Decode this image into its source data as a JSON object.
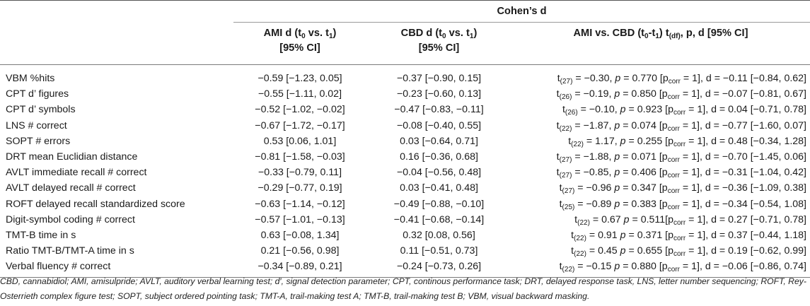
{
  "header": {
    "group_label": "Cohen’s d",
    "col_ami": {
      "prefix": "AMI d (t",
      "s0": "0",
      "mid": " vs. t",
      "s1": "1",
      "suffix": ")",
      "line2": "[95% CI]"
    },
    "col_cbd": {
      "prefix": "CBD d (t",
      "s0": "0",
      "mid": " vs. t",
      "s1": "1",
      "suffix": ")",
      "line2": "[95% CI]"
    },
    "col_cmp": {
      "prefix": "AMI vs. CBD (t",
      "s0": "0",
      "mid": "-t",
      "s1": "1",
      "close": ") t",
      "sdf": "(df)",
      "suffix": ", p, d [95% CI]"
    }
  },
  "rows": [
    {
      "label": "VBM %hits",
      "ami": "−0.59 [−1.23, 0.05]",
      "cbd": "−0.37 [−0.90, 0.15]",
      "cmp": {
        "df": "(27)",
        "t": " = −0.30, ",
        "p": " = 0.770 [p",
        "rest": " = 1], d = −0.11 [−0.84, 0.62]"
      }
    },
    {
      "label": "CPT d’ figures",
      "ami": "−0.55 [−1.11, 0.02]",
      "cbd": "−0.23 [−0.60, 0.13]",
      "cmp": {
        "df": "(26)",
        "t": " = −0.19, ",
        "p": " = 0.850 [p",
        "rest": " = 1], d = −0.07 [−0.81, 0.67]"
      }
    },
    {
      "label": "CPT d’ symbols",
      "ami": "−0.52 [−1.02, −0.02]",
      "cbd": "−0.47 [−0.83, −0.11]",
      "cmp": {
        "df": "(26)",
        "t": " = −0.10, ",
        "p": " = 0.923 [p",
        "rest": " = 1], d = 0.04 [−0.71, 0.78]"
      }
    },
    {
      "label": "LNS # correct",
      "ami": "−0.67 [−1.72, −0.17]",
      "cbd": "−0.08 [−0.40, 0.55]",
      "cmp": {
        "df": "(22)",
        "t": " = −1.87, ",
        "p": " = 0.074 [p",
        "rest": " = 1], d = −0.77 [−1.60, 0.07]"
      }
    },
    {
      "label": "SOPT # errors",
      "ami": "0.53 [0.06, 1.01]",
      "cbd": "0.03 [−0.64, 0.71]",
      "cmp": {
        "df": "(22)",
        "t": " = 1.17, ",
        "p": " = 0.255 [p",
        "rest": " = 1], d = 0.48 [−0.34, 1.28]"
      }
    },
    {
      "label": "DRT mean Euclidian distance",
      "ami": "−0.81 [−1.58, −0.03]",
      "cbd": "0.16 [−0.36, 0.68]",
      "cmp": {
        "df": "(27)",
        "t": " = −1.88, ",
        "p": " = 0.071 [p",
        "rest": " = 1], d = −0.70 [−1.45, 0.06]"
      }
    },
    {
      "label": "AVLT immediate recall # correct",
      "ami": "−0.33 [−0.79, 0.11]",
      "cbd": "−0.04 [−0.56, 0.48]",
      "cmp": {
        "df": "(27)",
        "t": " = −0.85, ",
        "p": " = 0.406 [p",
        "rest": " = 1], d = −0.31 [−1.04, 0.42]"
      }
    },
    {
      "label": "AVLT delayed recall # correct",
      "ami": "−0.29 [−0.77, 0.19]",
      "cbd": "0.03 [−0.41, 0.48]",
      "cmp": {
        "df": "(27)",
        "t": " = −0.96 ",
        "p": " = 0.347 [p",
        "rest": " = 1], d = −0.36 [−1.09, 0.38]"
      }
    },
    {
      "label": "ROFT delayed recall standardized score",
      "ami": "−0.63 [−1.14, −0.12]",
      "cbd": "−0.49 [−0.88, −0.10]",
      "cmp": {
        "df": "(25)",
        "t": " = −0.89 ",
        "p": " = 0.383 [p",
        "rest": " = 1], d = −0.34 [−0.54, 1.08]"
      }
    },
    {
      "label": "Digit-symbol coding # correct",
      "ami": "−0.57 [−1.01, −0.13]",
      "cbd": "−0.41 [−0.68, −0.14]",
      "cmp": {
        "df": "(22)",
        "t": " = 0.67 ",
        "p": " = 0.511[p",
        "rest": " = 1], d = 0.27 [−0.71, 0.78]"
      }
    },
    {
      "label": "TMT-B time in s",
      "ami": "0.63 [−0.08, 1.34]",
      "cbd": "0.32 [0.08, 0.56]",
      "cmp": {
        "df": "(22)",
        "t": " = 0.91 ",
        "p": " = 0.371 [p",
        "rest": " = 1], d = 0.37 [−0.44, 1.18]"
      }
    },
    {
      "label": "Ratio TMT-B/TMT-A time in s",
      "ami": "0.21 [−0.56, 0.98]",
      "cbd": "0.11 [−0.51, 0.73]",
      "cmp": {
        "df": "(22)",
        "t": " = 0.45 ",
        "p": " = 0.655 [p",
        "rest": " = 1], d = 0.19 [−0.62, 0.99]"
      }
    },
    {
      "label": "Verbal fluency # correct",
      "ami": "−0.34 [−0.89, 0.21]",
      "cbd": "−0.24 [−0.73, 0.26]",
      "cmp": {
        "df": "(22)",
        "t": " = −0.15 ",
        "p": " = 0.880 [p",
        "rest": " = 1], d = −0.06 [−0.86, 0.74]"
      }
    }
  ],
  "cmp_tokens": {
    "t": "t",
    "p": "p",
    "corr": "corr"
  },
  "footnote": "CBD, cannabidiol; AMI, amisulpride; AVLT, auditory verbal learning test; d′, signal detection parameter; CPT, continous performance task; DRT, delayed response task, LNS, letter number sequencing; ROFT, Rey-Osterrieth complex figure test; SOPT, subject ordered pointing task; TMT-A, trail-making test A; TMT-B, trail-making test B; VBM, visual backward masking."
}
